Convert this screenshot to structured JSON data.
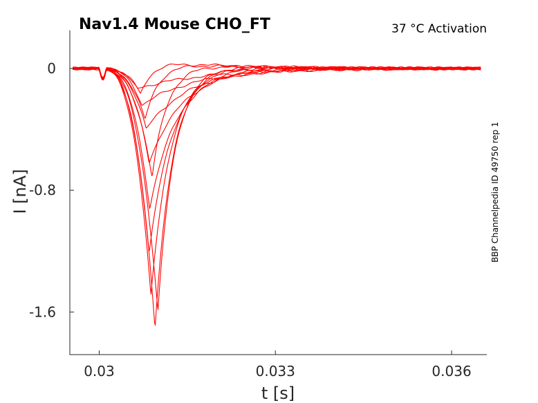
{
  "chart_data": {
    "type": "line",
    "title": "Nav1.4  Mouse  CHO_FT",
    "subtitle": "37 °C  Activation",
    "side_note": "BBP Channelpedia ID 49750 rep 1",
    "xlabel": "t [s]",
    "ylabel": "I [nA]",
    "xlim": [
      0.0295,
      0.0366
    ],
    "ylim": [
      -1.88,
      0.25
    ],
    "x_ticks": [
      0.03,
      0.033,
      0.036
    ],
    "x_tick_labels": [
      "0.03",
      "0.033",
      "0.036"
    ],
    "y_ticks": [
      0,
      -0.8,
      -1.6
    ],
    "y_tick_labels": [
      "0",
      "-0.8",
      "-1.6"
    ],
    "grid": false,
    "line_color": "#ff0000",
    "series": [
      {
        "peak_time": 0.03065,
        "peak_current": -0.13,
        "tau_decay": 0.0012,
        "rebound": 0.0
      },
      {
        "peak_time": 0.03073,
        "peak_current": -0.24,
        "tau_decay": 0.00095,
        "rebound": 0.005
      },
      {
        "peak_time": 0.0308,
        "peak_current": -0.4,
        "tau_decay": 0.00075,
        "rebound": 0.01
      },
      {
        "peak_time": 0.03085,
        "peak_current": -0.62,
        "tau_decay": 0.0006,
        "rebound": 0.015
      },
      {
        "peak_time": 0.03086,
        "peak_current": -0.92,
        "tau_decay": 0.00048,
        "rebound": 0.02
      },
      {
        "peak_time": 0.03085,
        "peak_current": -1.22,
        "tau_decay": 0.0004,
        "rebound": 0.025
      },
      {
        "peak_time": 0.03088,
        "peak_current": -1.5,
        "tau_decay": 0.00034,
        "rebound": 0.03
      },
      {
        "peak_time": 0.03095,
        "peak_current": -1.7,
        "tau_decay": 0.0003,
        "rebound": 0.035
      },
      {
        "peak_time": 0.031,
        "peak_current": -1.6,
        "tau_decay": 0.00028,
        "rebound": 0.04
      },
      {
        "peak_time": 0.0309,
        "peak_current": -0.72,
        "tau_decay": 0.00026,
        "rebound": 0.045
      },
      {
        "peak_time": 0.03078,
        "peak_current": -0.34,
        "tau_decay": 0.00024,
        "rebound": 0.05
      },
      {
        "peak_time": 0.0307,
        "peak_current": -0.17,
        "tau_decay": 0.00022,
        "rebound": 0.06
      }
    ]
  }
}
